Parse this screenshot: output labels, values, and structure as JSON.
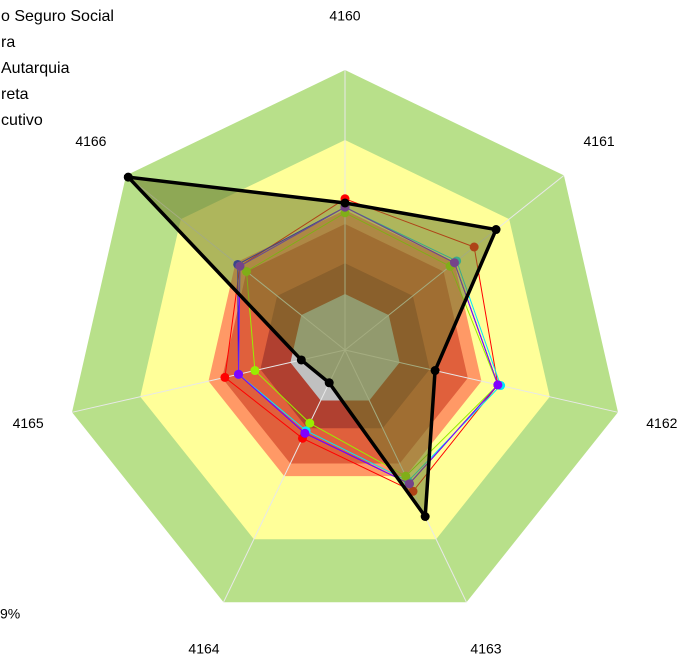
{
  "chart_data": {
    "type": "radar",
    "categories": [
      "4160",
      "4161",
      "4162",
      "4163",
      "4164",
      "4165",
      "4166"
    ],
    "ylim": [
      0,
      100
    ],
    "bands": [
      {
        "value": 100,
        "color": "#b8e08a"
      },
      {
        "value": 75,
        "color": "#ffff99"
      },
      {
        "value": 50,
        "color": "#ff9966"
      },
      {
        "value": 45,
        "color": "#e0603c"
      },
      {
        "value": 31,
        "color": "#b04030"
      },
      {
        "value": 20,
        "color": "#c0c0c0"
      }
    ],
    "series": [
      {
        "color": "#000000",
        "fill": "#6b7a2a",
        "values": [
          52.5,
          69,
          33,
          66,
          13,
          16,
          99
        ]
      },
      {
        "name": "o Seguro Social",
        "color": "#ff0000",
        "values": [
          54,
          59,
          56,
          56,
          35,
          44,
          48
        ]
      },
      {
        "name": "ra",
        "color": "#0000ff",
        "values": [
          51,
          50,
          56,
          53,
          33,
          39,
          49
        ]
      },
      {
        "name": "Autarquia",
        "color": "#00e5ff",
        "values": [
          51,
          51,
          57,
          52,
          32,
          39,
          48
        ]
      },
      {
        "name": "reta",
        "color": "#99ee00",
        "values": [
          49,
          48,
          56,
          50,
          29,
          33,
          45
        ]
      },
      {
        "name": "cutivo",
        "color": "#8000ff",
        "values": [
          51,
          50,
          56,
          53,
          33,
          39,
          48
        ]
      }
    ],
    "note": "9%"
  }
}
